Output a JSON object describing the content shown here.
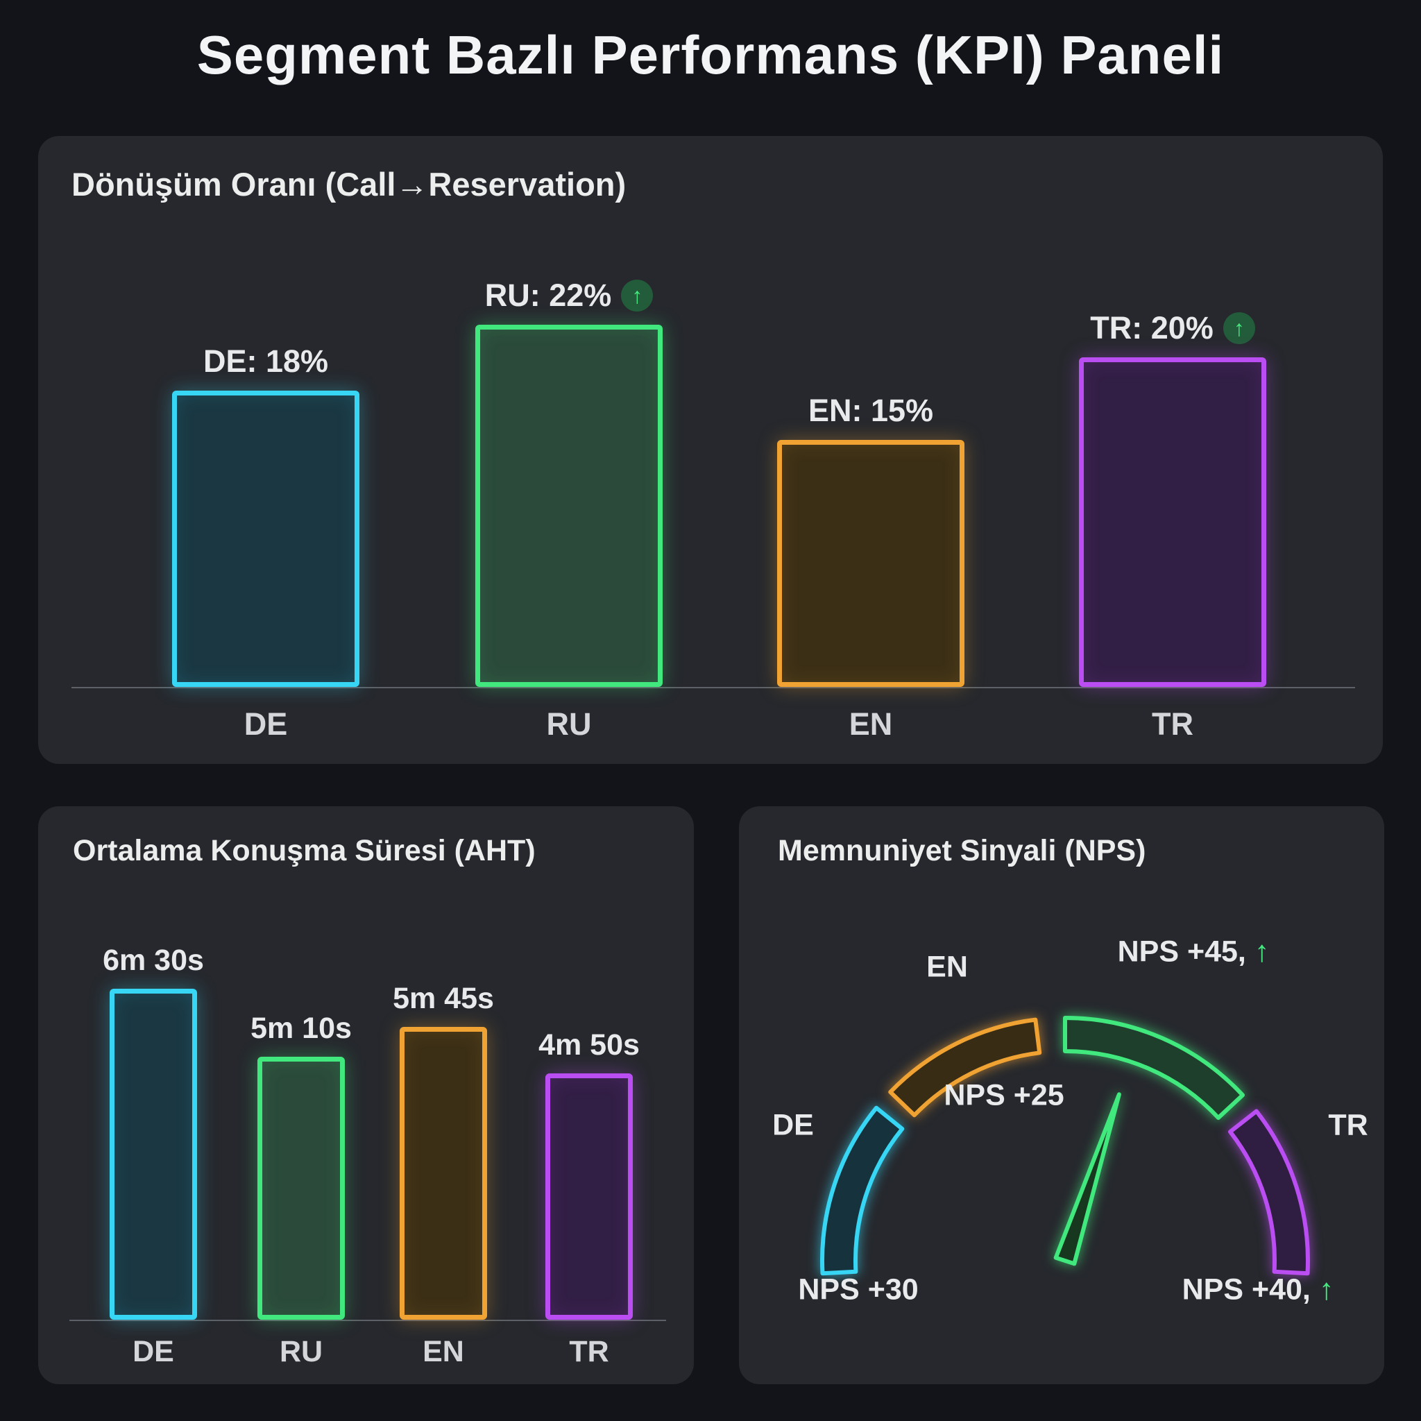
{
  "page_title": "Segment Bazlı Performans (KPI) Paneli",
  "glyphs": {
    "up_arrow": "↑"
  },
  "colors": {
    "cyan": "#38d6f5",
    "green": "#41e87d",
    "orange": "#f0a232",
    "purple": "#bb4ef2",
    "page_bg": "#121419",
    "panel_bg": "#26282d",
    "text_primary": "#e9eaec",
    "axis_line": "#5d6167",
    "trend_green": "#47e981"
  },
  "chart_data": [
    {
      "type": "bar",
      "title": "Dönüşüm Oranı (Call→Reservation)",
      "categories": [
        "DE",
        "RU",
        "EN",
        "TR"
      ],
      "values": [
        18,
        22,
        15,
        20
      ],
      "unit": "%",
      "ylim": [
        0,
        24
      ],
      "grid": false,
      "bars": [
        {
          "category": "DE",
          "value": 18,
          "value_label": "DE: 18%",
          "trend_arrow": false,
          "color": "#38d6f5",
          "fill": "#1a3742"
        },
        {
          "category": "RU",
          "value": 22,
          "value_label": "RU: 22%",
          "trend_arrow": true,
          "color": "#41e87d",
          "fill": "#2b4a3a"
        },
        {
          "category": "EN",
          "value": 15,
          "value_label": "EN: 15%",
          "trend_arrow": false,
          "color": "#f0a232",
          "fill": "#3b2f16"
        },
        {
          "category": "TR",
          "value": 20,
          "value_label": "TR: 20%",
          "trend_arrow": true,
          "color": "#bb4ef2",
          "fill": "#321f45"
        }
      ]
    },
    {
      "type": "bar",
      "title": "Ortalama Konuşma Süresi (AHT)",
      "categories": [
        "DE",
        "RU",
        "EN",
        "TR"
      ],
      "values_seconds": [
        390,
        310,
        345,
        290
      ],
      "grid": false,
      "bars": [
        {
          "category": "DE",
          "seconds": 390,
          "value_label": "6m 30s",
          "trend_arrow": false,
          "color": "#38d6f5",
          "fill": "#1a3742"
        },
        {
          "category": "RU",
          "seconds": 310,
          "value_label": "5m 10s",
          "trend_arrow": false,
          "color": "#41e87d",
          "fill": "#2b4a3a"
        },
        {
          "category": "EN",
          "seconds": 345,
          "value_label": "5m 45s",
          "trend_arrow": false,
          "color": "#f0a232",
          "fill": "#3b2f16"
        },
        {
          "category": "TR",
          "seconds": 290,
          "value_label": "4m 50s",
          "trend_arrow": false,
          "color": "#bb4ef2",
          "fill": "#321f45"
        }
      ]
    },
    {
      "type": "gauge",
      "title": "Memnuniyet Sinyali (NPS)",
      "needle_angle_deg": 72,
      "needle_color": "#41e87d",
      "segments": [
        {
          "lang_label": "DE",
          "nps": 30,
          "nps_text": "NPS +30",
          "trend_arrow": false,
          "color": "#38d6f5",
          "fill": "#16333d",
          "angles": [
            183,
            141
          ]
        },
        {
          "lang_label": "EN",
          "nps": 25,
          "nps_text": "NPS +25",
          "trend_arrow": false,
          "color": "#f0a232",
          "fill": "#382c14",
          "angles": [
            136,
            97
          ]
        },
        {
          "lang_label": "",
          "nps": 45,
          "nps_text": "NPS +45,",
          "trend_arrow": true,
          "color": "#41e87d",
          "fill": "#1e3f2b",
          "angles": [
            90,
            43
          ]
        },
        {
          "lang_label": "TR",
          "nps": 40,
          "nps_text": "NPS +40,",
          "trend_arrow": true,
          "color": "#bb4ef2",
          "fill": "#301e42",
          "angles": [
            38,
            -3
          ]
        }
      ]
    }
  ]
}
